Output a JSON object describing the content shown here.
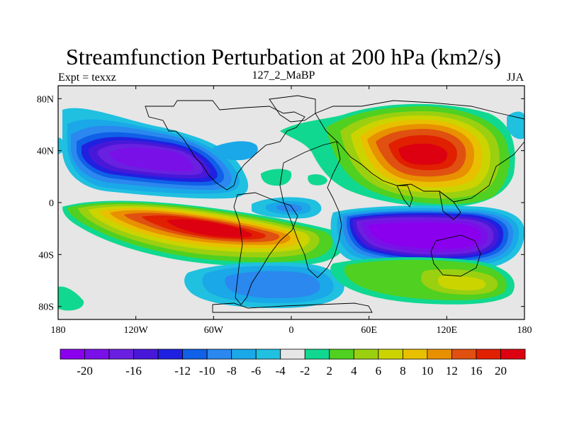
{
  "title": "Streamfunction Perturbation at 200 hPa (km2/s)",
  "left_string": "Expt = texxz",
  "center_string": "127_2_MaBP",
  "right_string": "JJA",
  "chart_data": {
    "type": "heatmap",
    "x_ticks": [
      {
        "value": -180,
        "label": "180"
      },
      {
        "value": -120,
        "label": "120W"
      },
      {
        "value": -60,
        "label": "60W"
      },
      {
        "value": 0,
        "label": "0"
      },
      {
        "value": 60,
        "label": "60E"
      },
      {
        "value": 120,
        "label": "120E"
      },
      {
        "value": 180,
        "label": "180"
      }
    ],
    "y_ticks": [
      {
        "value": 80,
        "label": "80N"
      },
      {
        "value": 40,
        "label": "40N"
      },
      {
        "value": 0,
        "label": "0"
      },
      {
        "value": -40,
        "label": "40S"
      },
      {
        "value": -80,
        "label": "80S"
      }
    ],
    "xlim": [
      -180,
      180
    ],
    "ylim": [
      -90,
      90
    ],
    "contour_levels": [
      -20,
      -18,
      -16,
      -14,
      -12,
      -10,
      -8,
      -6,
      -4,
      -2,
      2,
      4,
      6,
      8,
      10,
      12,
      16,
      20
    ],
    "colorbar_labels": [
      {
        "level": -20,
        "label": "-20"
      },
      {
        "level": -16,
        "label": "-16"
      },
      {
        "level": -12,
        "label": "-12"
      },
      {
        "level": -10,
        "label": "-10"
      },
      {
        "level": -8,
        "label": "-8"
      },
      {
        "level": -6,
        "label": "-6"
      },
      {
        "level": -4,
        "label": "-4"
      },
      {
        "level": -2,
        "label": "-2"
      },
      {
        "level": 2,
        "label": "2"
      },
      {
        "level": 4,
        "label": "4"
      },
      {
        "level": 6,
        "label": "6"
      },
      {
        "level": 8,
        "label": "8"
      },
      {
        "level": 10,
        "label": "10"
      },
      {
        "level": 12,
        "label": "12"
      },
      {
        "level": 16,
        "label": "16"
      },
      {
        "level": 20,
        "label": "20"
      }
    ],
    "colors": [
      "#8a00ee",
      "#7a10e8",
      "#6a20e0",
      "#4818d8",
      "#2020e0",
      "#1060e8",
      "#2a88ee",
      "#1aa8e8",
      "#20c0e0",
      "#e6e6e6",
      "#10d890",
      "#50d020",
      "#9ad010",
      "#ccd400",
      "#e8c000",
      "#e89000",
      "#e05010",
      "#e02000",
      "#dd0010"
    ],
    "anomaly_centers": [
      {
        "lon": -95,
        "lat": 40,
        "peak": -21
      },
      {
        "lon": 95,
        "lat": 35,
        "peak": 18
      },
      {
        "lon": -55,
        "lat": -22,
        "peak": 21
      },
      {
        "lon": 100,
        "lat": -25,
        "peak": -21
      },
      {
        "lon": -30,
        "lat": -62,
        "peak": -7
      },
      {
        "lon": -5,
        "lat": -5,
        "peak": -9
      },
      {
        "lon": 140,
        "lat": -60,
        "peak": 9
      }
    ]
  }
}
